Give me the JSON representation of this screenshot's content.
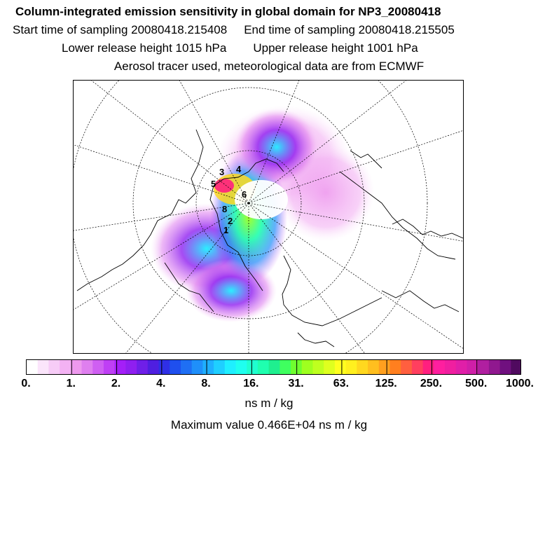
{
  "header": {
    "title": "Column-integrated emission sensitivity in global domain for NP3_20080418",
    "start_label": "Start time of sampling 20080418.215408",
    "end_label": "End time of sampling 20080418.215505",
    "lower_label": "Lower release height 1015 hPa",
    "upper_label": "Upper release height 1001 hPa",
    "info_label": "Aerosol tracer used, meteorological data are from ECMWF"
  },
  "map": {
    "projection": "polar-stereographic",
    "hemisphere": "north",
    "colors": {
      "coast": "#000000",
      "grid": "#000000",
      "frame": "#000000"
    },
    "contour_labels": [
      "1",
      "2",
      "3",
      "4",
      "5",
      "6",
      "8"
    ]
  },
  "colorbar": {
    "tick_labels": [
      "0.",
      "1.",
      "2.",
      "4.",
      "8.",
      "16.",
      "31.",
      "63.",
      "125.",
      "250.",
      "500.",
      "1000."
    ],
    "colors": [
      "#ffffff",
      "#fbe5fb",
      "#f7ccf7",
      "#f3b2f3",
      "#ee99ee",
      "#df7fef",
      "#cf5ff2",
      "#bf3ff5",
      "#a41ff8",
      "#8f1ff0",
      "#6f1fe8",
      "#4f1fe0",
      "#2f2fe6",
      "#1f4fee",
      "#1f6ff4",
      "#1f8ffa",
      "#1fafff",
      "#1fcfff",
      "#1fefff",
      "#1fffef",
      "#1fffcf",
      "#1fffaf",
      "#1fef8f",
      "#3fff5f",
      "#6fff2f",
      "#9fff1f",
      "#bfff1f",
      "#dfff1f",
      "#ffff1f",
      "#fff01f",
      "#ffd81f",
      "#ffbf1f",
      "#ffa01f",
      "#ff7f1f",
      "#ff5f3f",
      "#ff3f5f",
      "#ff1f7f",
      "#ff1f9f",
      "#f01fa0",
      "#e01fa8",
      "#cf1fa8",
      "#b01fa0",
      "#90188f",
      "#70107f",
      "#500a5f"
    ],
    "units": "ns m / kg"
  },
  "footer": {
    "max_value": "Maximum value  0.466E+04 ns m / kg"
  }
}
